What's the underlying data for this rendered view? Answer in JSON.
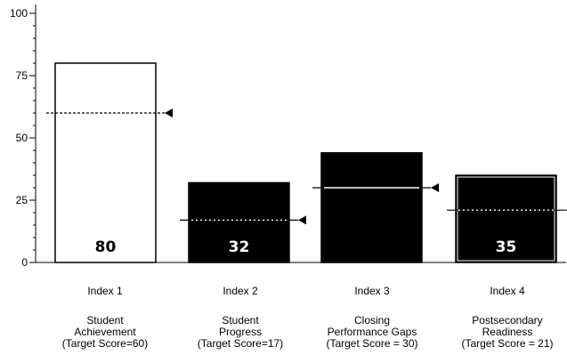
{
  "chart_data": {
    "type": "bar",
    "title": "",
    "xlabel": "",
    "ylabel": "",
    "ylim": [
      0,
      100
    ],
    "yticks": [
      0,
      25,
      50,
      75,
      100
    ],
    "grid": false,
    "categories": [
      "Index 1",
      "Index 2",
      "Index 3",
      "Index 4"
    ],
    "descriptions": [
      [
        "Student",
        "Achievement",
        "(Target Score=60)"
      ],
      [
        "Student",
        "Progress",
        "(Target Score=17)"
      ],
      [
        "Closing",
        "Performance Gaps",
        "(Target Score = 30)"
      ],
      [
        "Postsecondary",
        "Readiness",
        "(Target Score = 21)"
      ]
    ],
    "values": [
      80,
      32,
      44,
      35
    ],
    "value_labels": [
      "80",
      "32",
      "",
      "35"
    ],
    "targets": [
      60,
      17,
      30,
      21
    ],
    "bar_colors": [
      "#ffffff",
      "#000000",
      "#000000",
      "#000000"
    ],
    "label_colors": [
      "#000000",
      "#ffffff",
      "#ffffff",
      "#ffffff"
    ]
  }
}
